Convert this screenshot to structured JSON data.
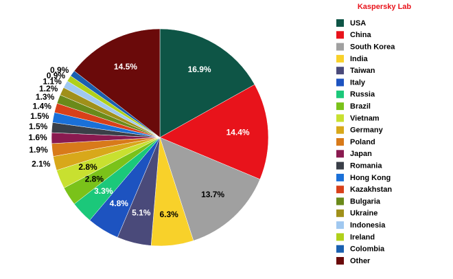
{
  "chart_data": {
    "type": "pie",
    "source": "Kaspersky Lab",
    "categories": [
      "USA",
      "China",
      "South Korea",
      "India",
      "Taiwan",
      "Italy",
      "Russia",
      "Brazil",
      "Vietnam",
      "Germany",
      "Poland",
      "Japan",
      "Romania",
      "Hong Kong",
      "Kazakhstan",
      "Bulgaria",
      "Ukraine",
      "Indonesia",
      "Ireland",
      "Colombia",
      "Other"
    ],
    "values": [
      16.9,
      14.4,
      13.7,
      6.3,
      5.1,
      4.8,
      3.3,
      2.8,
      2.8,
      2.1,
      1.9,
      1.6,
      1.5,
      1.5,
      1.4,
      1.3,
      1.2,
      1.1,
      0.9,
      0.9,
      14.5
    ],
    "value_labels": [
      "16.9%",
      "14.4%",
      "13.7%",
      "6.3%",
      "5.1%",
      "4.8%",
      "3.3%",
      "2.8%",
      "2.8%",
      "2.1%",
      "1.9%",
      "1.6%",
      "1.5%",
      "1.5%",
      "1.4%",
      "1.3%",
      "1.2%",
      "1.1%",
      "0.9%",
      "0.9%",
      "14.5%"
    ],
    "colors": [
      "#0e5546",
      "#e8131b",
      "#a0a0a0",
      "#f8d12a",
      "#4a4a7a",
      "#1d53c0",
      "#1bc87a",
      "#7ac21a",
      "#c8e030",
      "#d8a81a",
      "#d87a1a",
      "#8a1a50",
      "#3a3f48",
      "#1a70d8",
      "#d8401a",
      "#6a8a1a",
      "#a0901a",
      "#a0c8f0",
      "#b0d01a",
      "#1a60b0",
      "#6a0a0a"
    ],
    "legend": "right"
  }
}
